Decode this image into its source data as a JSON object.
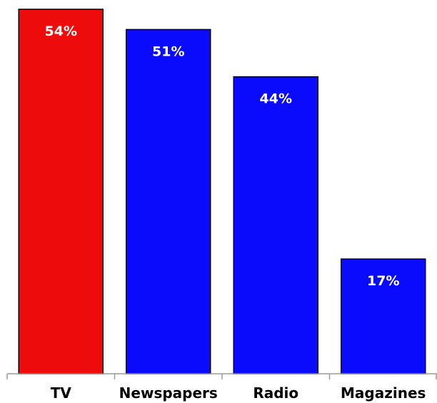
{
  "chart_data": {
    "type": "bar",
    "categories": [
      "TV",
      "Newspapers",
      "Radio",
      "Magazines"
    ],
    "values": [
      54,
      51,
      44,
      17
    ],
    "value_labels": [
      "54%",
      "51%",
      "44%",
      "17%"
    ],
    "colors": [
      "#ee0b0b",
      "#0a0afc",
      "#0a0afc",
      "#0a0afc"
    ],
    "ylim": [
      0,
      54
    ],
    "grid": false,
    "legend": "none"
  }
}
